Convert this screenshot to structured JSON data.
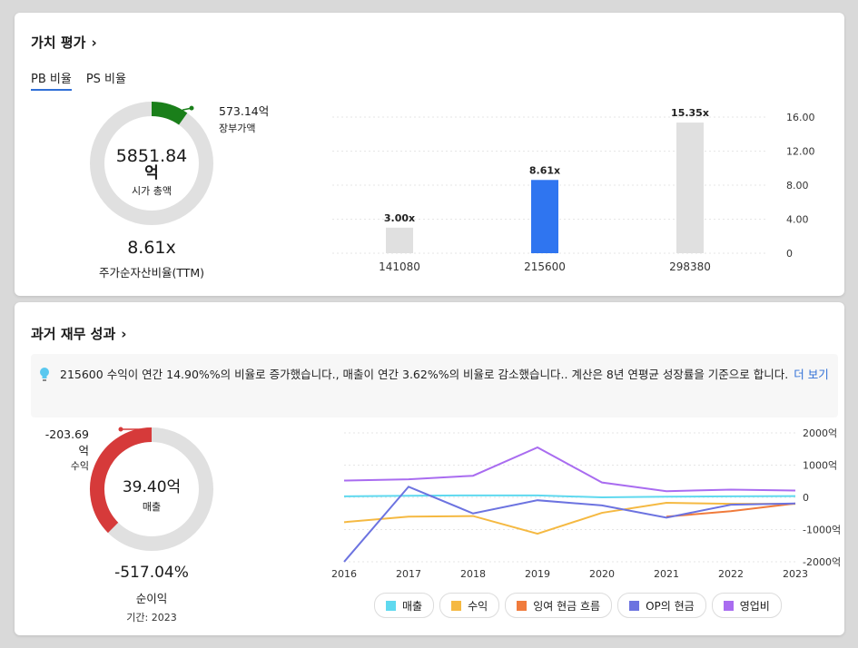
{
  "valuation": {
    "title": "가치 평가",
    "tabs": [
      {
        "label": "PB 비율"
      },
      {
        "label": "PS 비율"
      }
    ],
    "donut": {
      "center_value": "5851.84",
      "center_unit": "억",
      "center_label": "시가 총액",
      "callout_value": "573.14억",
      "callout_label": "장부가액",
      "slice_fraction": 0.098,
      "primary_color": "#1a7f1a",
      "track_color": "#e0e0e0"
    },
    "ratio_value": "8.61x",
    "ratio_label": "주가순자산비율(TTM)"
  },
  "chart_data": [
    {
      "type": "bar",
      "categories": [
        "141080",
        "215600",
        "298380"
      ],
      "values": [
        3.0,
        8.61,
        15.35
      ],
      "data_labels": [
        "3.00x",
        "8.61x",
        "15.35x"
      ],
      "highlight_index": 1,
      "colors": {
        "bar": "#e0e0e0",
        "highlight": "#2f75f0"
      },
      "ylim": [
        0,
        16
      ],
      "y_ticks": [
        "16.00",
        "12.00",
        "8.00",
        "4.00",
        "0"
      ],
      "y_axis_position": "right",
      "grid": true
    },
    {
      "type": "line",
      "x": [
        "2016",
        "2017",
        "2018",
        "2019",
        "2020",
        "2021",
        "2022",
        "2023"
      ],
      "ylim": [
        -2000,
        2000
      ],
      "y_ticks": [
        "2000억",
        "1000억",
        "0",
        "-1000억",
        "-2000억"
      ],
      "y_axis_position": "right",
      "grid": true,
      "series": [
        {
          "name": "매출",
          "color": "#5fd9ef",
          "values": [
            30,
            50,
            60,
            60,
            0,
            20,
            30,
            39
          ]
        },
        {
          "name": "수익",
          "color": "#f5b942",
          "values": [
            -770,
            -600,
            -580,
            -1130,
            -480,
            -170,
            -200,
            -204
          ]
        },
        {
          "name": "잉여 현금 흐름",
          "color": "#f07b3c",
          "values": [
            null,
            null,
            null,
            null,
            null,
            -600,
            -430,
            -190
          ]
        },
        {
          "name": "OP의 현금",
          "color": "#6c73e0",
          "values": [
            -2000,
            330,
            -500,
            -90,
            -250,
            -630,
            -230,
            -190
          ]
        },
        {
          "name": "영업비",
          "color": "#a96cf0",
          "values": [
            520,
            560,
            670,
            1550,
            460,
            190,
            240,
            210
          ]
        }
      ]
    }
  ],
  "performance": {
    "title": "과거 재무 성과",
    "info_text": "215600 수익이 연간 14.90%%의 비율로 증가했습니다., 매출이 연간 3.62%%의 비율로 감소했습니다.. 계산은 8년 연평균 성장률을 기준으로 합니다.",
    "more_label": "더 보기",
    "donut": {
      "center_value": "39.40억",
      "center_label": "매출",
      "callout_value": "-203.69",
      "callout_unit": "억",
      "callout_label": "수익",
      "slice_fraction": 0.375,
      "primary_color": "#d63a3a",
      "track_color": "#e0e0e0"
    },
    "margin_value": "-517.04%",
    "margin_label": "순이익",
    "period_label": "기간: 2023",
    "legend": [
      {
        "label": "매출",
        "color": "#5fd9ef"
      },
      {
        "label": "수익",
        "color": "#f5b942"
      },
      {
        "label": "잉여 현금 흐름",
        "color": "#f07b3c"
      },
      {
        "label": "OP의 현금",
        "color": "#6c73e0"
      },
      {
        "label": "영업비",
        "color": "#a96cf0"
      }
    ]
  }
}
